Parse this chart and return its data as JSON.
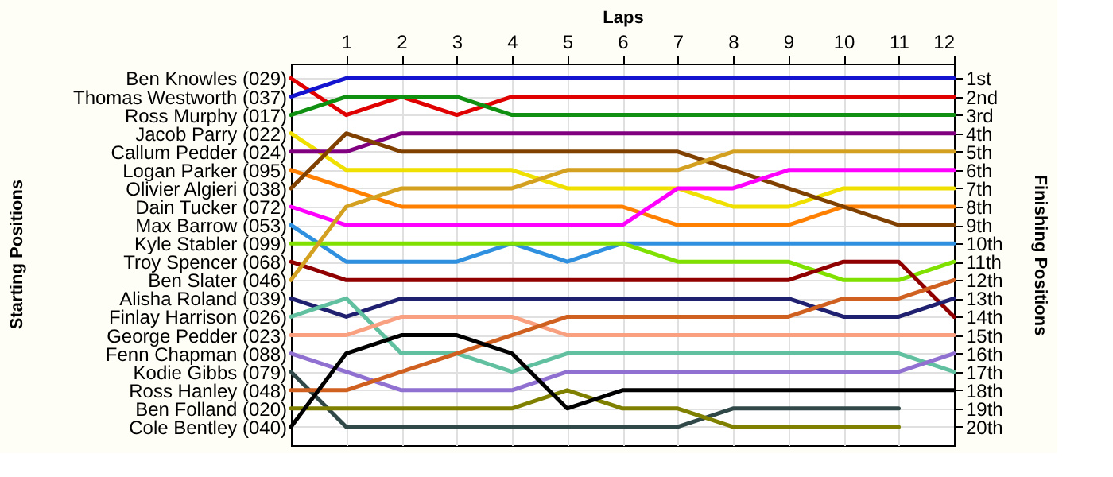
{
  "chart_data": {
    "type": "line",
    "xlabel": "Laps",
    "annotations": [
      "Starting Positions"
    ],
    "y2label": "Finishing Positions",
    "x": [
      0,
      1,
      2,
      3,
      4,
      5,
      6,
      7,
      8,
      9,
      10,
      11,
      12
    ],
    "xlim": [
      0,
      12
    ],
    "xticks": [
      1,
      2,
      3,
      4,
      5,
      6,
      7,
      8,
      9,
      10,
      11,
      12
    ],
    "ylim": [
      21,
      0.2
    ],
    "yticks": [
      {
        "value": 1,
        "label": "1st"
      },
      {
        "value": 2,
        "label": "2nd"
      },
      {
        "value": 3,
        "label": "3rd"
      },
      {
        "value": 4,
        "label": "4th"
      },
      {
        "value": 5,
        "label": "5th"
      },
      {
        "value": 6,
        "label": "6th"
      },
      {
        "value": 7,
        "label": "7th"
      },
      {
        "value": 8,
        "label": "8th"
      },
      {
        "value": 9,
        "label": "9th"
      },
      {
        "value": 10,
        "label": "10th"
      },
      {
        "value": 11,
        "label": "11th"
      },
      {
        "value": 12,
        "label": "12th"
      },
      {
        "value": 13,
        "label": "13th"
      },
      {
        "value": 14,
        "label": "14th"
      },
      {
        "value": 15,
        "label": "15th"
      },
      {
        "value": 16,
        "label": "16th"
      },
      {
        "value": 17,
        "label": "17th"
      },
      {
        "value": 18,
        "label": "18th"
      },
      {
        "value": 19,
        "label": "19th"
      },
      {
        "value": 20,
        "label": "20th"
      }
    ],
    "grid": true,
    "line_style": "solid",
    "series": [
      {
        "name": "Ben Knowles (029)",
        "color": "#e00000",
        "values": [
          1,
          3,
          2,
          3,
          2,
          2,
          2,
          2,
          2,
          2,
          2,
          2,
          2
        ]
      },
      {
        "name": "Thomas Westworth (037)",
        "color": "#1414d0",
        "values": [
          2,
          1,
          1,
          1,
          1,
          1,
          1,
          1,
          1,
          1,
          1,
          1,
          1
        ]
      },
      {
        "name": "Ross Murphy (017)",
        "color": "#109010",
        "values": [
          3,
          2,
          2,
          2,
          3,
          3,
          3,
          3,
          3,
          3,
          3,
          3,
          3
        ]
      },
      {
        "name": "Jacob Parry (022)",
        "color": "#f0e000",
        "values": [
          4,
          6,
          6,
          6,
          6,
          7,
          7,
          7,
          8,
          8,
          7,
          7,
          7
        ]
      },
      {
        "name": "Callum Pedder (024)",
        "color": "#800080",
        "values": [
          5,
          5,
          4,
          4,
          4,
          4,
          4,
          4,
          4,
          4,
          4,
          4,
          4
        ]
      },
      {
        "name": "Logan Parker (095)",
        "color": "#ff8000",
        "values": [
          6,
          7,
          8,
          8,
          8,
          8,
          8,
          9,
          9,
          9,
          8,
          8,
          8
        ]
      },
      {
        "name": "Olivier Algieri (038)",
        "color": "#804000",
        "values": [
          7,
          4,
          5,
          5,
          5,
          5,
          5,
          5,
          6,
          7,
          8,
          9,
          9
        ]
      },
      {
        "name": "Dain Tucker (072)",
        "color": "#ff00ff",
        "values": [
          8,
          9,
          9,
          9,
          9,
          9,
          9,
          7,
          7,
          6,
          6,
          6,
          6
        ]
      },
      {
        "name": "Max Barrow (053)",
        "color": "#3090e0",
        "values": [
          9,
          11,
          11,
          11,
          10,
          11,
          10,
          10,
          10,
          10,
          10,
          10,
          10
        ]
      },
      {
        "name": "Kyle Stabler (099)",
        "color": "#80e000",
        "values": [
          10,
          10,
          10,
          10,
          10,
          10,
          10,
          11,
          11,
          11,
          12,
          12,
          11
        ]
      },
      {
        "name": "Troy Spencer (068)",
        "color": "#900000",
        "values": [
          11,
          12,
          12,
          12,
          12,
          12,
          12,
          12,
          12,
          12,
          11,
          11,
          14
        ]
      },
      {
        "name": "Ben Slater (046)",
        "color": "#d4a020",
        "values": [
          12,
          8,
          7,
          7,
          7,
          6,
          6,
          6,
          5,
          5,
          5,
          5,
          5
        ]
      },
      {
        "name": "Alisha Roland (039)",
        "color": "#202070",
        "values": [
          13,
          14,
          13,
          13,
          13,
          13,
          13,
          13,
          13,
          13,
          14,
          14,
          13
        ]
      },
      {
        "name": "Finlay Harrison (026)",
        "color": "#60c0a0",
        "values": [
          14,
          13,
          16,
          16,
          17,
          16,
          16,
          16,
          16,
          16,
          16,
          16,
          17
        ]
      },
      {
        "name": "George Pedder (023)",
        "color": "#f8a080",
        "values": [
          15,
          15,
          14,
          14,
          14,
          15,
          15,
          15,
          15,
          15,
          15,
          15,
          15
        ]
      },
      {
        "name": "Fenn Chapman (088)",
        "color": "#9070d0",
        "values": [
          16,
          17,
          18,
          18,
          18,
          17,
          17,
          17,
          17,
          17,
          17,
          17,
          16
        ]
      },
      {
        "name": "Kodie Gibbs (079)",
        "color": "#304848",
        "values": [
          17,
          20,
          20,
          20,
          20,
          20,
          20,
          20,
          19,
          19,
          19,
          19,
          null
        ]
      },
      {
        "name": "Ross Hanley (048)",
        "color": "#d06020",
        "values": [
          18,
          18,
          17,
          16,
          15,
          14,
          14,
          14,
          14,
          14,
          13,
          13,
          12
        ]
      },
      {
        "name": "Ben Folland (020)",
        "color": "#808000",
        "values": [
          19,
          19,
          19,
          19,
          19,
          18,
          19,
          19,
          20,
          20,
          20,
          20,
          null
        ]
      },
      {
        "name": "Cole Bentley (040)",
        "color": "#000000",
        "values": [
          20,
          16,
          15,
          15,
          16,
          19,
          18,
          18,
          18,
          18,
          18,
          18,
          18
        ]
      }
    ]
  }
}
